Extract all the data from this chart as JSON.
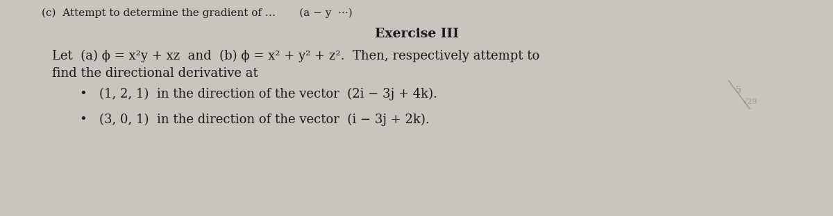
{
  "background_color": "#c8c5be",
  "text_color": "#1c1a18",
  "top_cutoff_text": "(c)  Attempt to determine the gradient of …   (a − y ···)",
  "title": "Exercise III",
  "line1": "Let  (a) ϕ = x²y + xz  and  (b) ϕ = x² + y² + z².  Then, respectively attempt to",
  "line2": "find the directional derivative at",
  "bullet1": "•   (1, 2, 1)  in the direction of the vector  (2i − 3j + 4k).",
  "bullet2": "•   (3, 0, 1)  in the direction of the vector  (i − 3j + 2k).",
  "title_fontsize": 13.5,
  "body_fontsize": 13,
  "cutoff_fontsize": 11
}
